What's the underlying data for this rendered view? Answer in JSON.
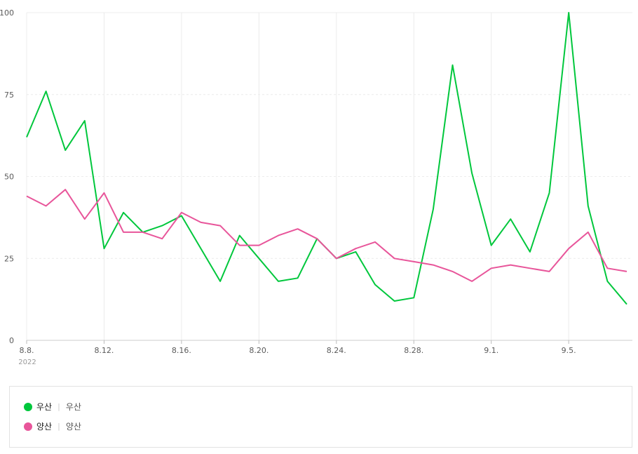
{
  "chart_data": {
    "type": "line",
    "x": [
      "8.8.",
      "8.9.",
      "8.10.",
      "8.11.",
      "8.12.",
      "8.13.",
      "8.14.",
      "8.15.",
      "8.16.",
      "8.17.",
      "8.18.",
      "8.19.",
      "8.20.",
      "8.21.",
      "8.22.",
      "8.23.",
      "8.24.",
      "8.25.",
      "8.26.",
      "8.27.",
      "8.28.",
      "8.29.",
      "8.30.",
      "8.31.",
      "9.1.",
      "9.2.",
      "9.3.",
      "9.4.",
      "9.5.",
      "9.6.",
      "9.7.",
      "9.8."
    ],
    "x_tick_labels": [
      "8.8.",
      "8.12.",
      "8.16.",
      "8.20.",
      "8.24.",
      "8.28.",
      "9.1.",
      "9.5."
    ],
    "x_tick_indices": [
      0,
      4,
      8,
      12,
      16,
      20,
      24,
      28
    ],
    "year_label": "2022",
    "ylim": [
      0,
      100
    ],
    "y_ticks": [
      0,
      25,
      50,
      75,
      100
    ],
    "grid": true,
    "series": [
      {
        "name": "우산",
        "color": "#00c73c",
        "values": [
          62,
          76,
          58,
          67,
          28,
          39,
          33,
          35,
          38,
          28,
          18,
          32,
          25,
          18,
          19,
          31,
          25,
          27,
          17,
          12,
          13,
          40,
          84,
          51,
          29,
          37,
          27,
          45,
          100,
          41,
          18,
          11
        ]
      },
      {
        "name": "양산",
        "color": "#e8559a",
        "values": [
          44,
          41,
          46,
          37,
          45,
          33,
          33,
          31,
          39,
          36,
          35,
          29,
          29,
          32,
          34,
          31,
          25,
          28,
          30,
          25,
          24,
          23,
          21,
          18,
          22,
          23,
          22,
          21,
          28,
          33,
          22,
          21
        ]
      }
    ]
  },
  "legend": [
    {
      "label": "우산",
      "sub": "우산",
      "color": "#00c73c"
    },
    {
      "label": "양산",
      "sub": "양산",
      "color": "#e8559a"
    }
  ],
  "legend_sep": "|"
}
